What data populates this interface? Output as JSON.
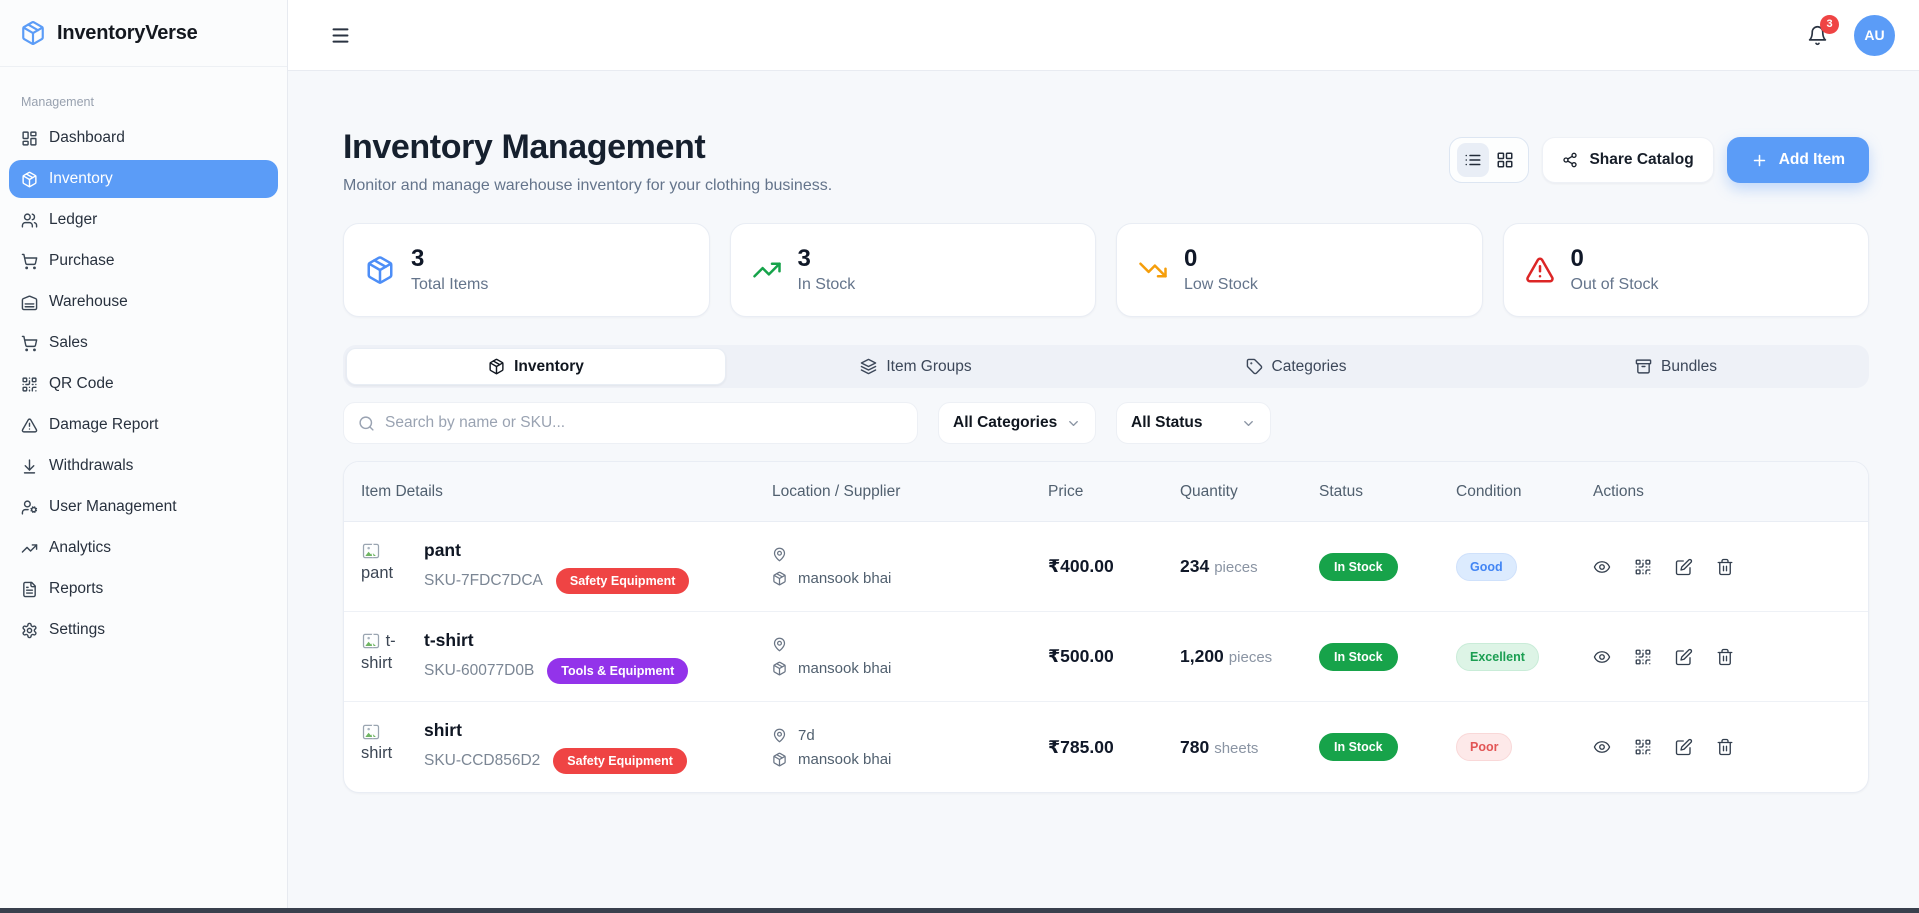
{
  "app": {
    "name": "InventoryVerse"
  },
  "topbar": {
    "notification_count": "3",
    "avatar_initials": "AU"
  },
  "sidebar": {
    "section": "Management",
    "items": [
      {
        "label": "Dashboard",
        "icon": "layout-dashboard",
        "active": false
      },
      {
        "label": "Inventory",
        "icon": "package",
        "active": true
      },
      {
        "label": "Ledger",
        "icon": "users",
        "active": false
      },
      {
        "label": "Purchase",
        "icon": "cart",
        "active": false
      },
      {
        "label": "Warehouse",
        "icon": "warehouse",
        "active": false
      },
      {
        "label": "Sales",
        "icon": "cart",
        "active": false
      },
      {
        "label": "QR Code",
        "icon": "qr",
        "active": false
      },
      {
        "label": "Damage Report",
        "icon": "alert-triangle",
        "active": false
      },
      {
        "label": "Withdrawals",
        "icon": "download",
        "active": false
      },
      {
        "label": "User Management",
        "icon": "user-cog",
        "active": false
      },
      {
        "label": "Analytics",
        "icon": "trending-up",
        "active": false
      },
      {
        "label": "Reports",
        "icon": "file-text",
        "active": false
      },
      {
        "label": "Settings",
        "icon": "settings",
        "active": false
      }
    ]
  },
  "header": {
    "title": "Inventory Management",
    "subtitle": "Monitor and manage warehouse inventory for your clothing business.",
    "share_label": "Share Catalog",
    "add_label": "Add Item"
  },
  "stats": [
    {
      "value": "3",
      "label": "Total Items",
      "icon": "package",
      "color": "#4d8ef7"
    },
    {
      "value": "3",
      "label": "In Stock",
      "icon": "trending-up",
      "color": "#16a34a"
    },
    {
      "value": "0",
      "label": "Low Stock",
      "icon": "trending-down",
      "color": "#f59e0b"
    },
    {
      "value": "0",
      "label": "Out of Stock",
      "icon": "alert-triangle",
      "color": "#dc2626"
    }
  ],
  "tabs": [
    {
      "label": "Inventory",
      "icon": "package",
      "active": true
    },
    {
      "label": "Item Groups",
      "icon": "layers",
      "active": false
    },
    {
      "label": "Categories",
      "icon": "tag",
      "active": false
    },
    {
      "label": "Bundles",
      "icon": "archive",
      "active": false
    }
  ],
  "filters": {
    "search_placeholder": "Search by name or SKU...",
    "category_filter": "All Categories",
    "status_filter": "All Status"
  },
  "table": {
    "columns": [
      "Item Details",
      "Location / Supplier",
      "Price",
      "Quantity",
      "Status",
      "Condition",
      "Actions"
    ],
    "rows": [
      {
        "name": "pant",
        "sku": "SKU-7FDC7DCA",
        "category": "Safety Equipment",
        "category_color": "#ef4444",
        "location": "",
        "supplier": "mansook bhai",
        "price": "₹400.00",
        "quantity": "234",
        "unit": "pieces",
        "status": "In Stock",
        "condition": "Good",
        "condition_style": "blue"
      },
      {
        "name": "t-shirt",
        "sku": "SKU-60077D0B",
        "category": "Tools & Equipment",
        "category_color": "#9333ea",
        "location": "",
        "supplier": "mansook bhai",
        "price": "₹500.00",
        "quantity": "1,200",
        "unit": "pieces",
        "status": "In Stock",
        "condition": "Excellent",
        "condition_style": "green"
      },
      {
        "name": "shirt",
        "sku": "SKU-CCD856D2",
        "category": "Safety Equipment",
        "category_color": "#ef4444",
        "location": "7d",
        "supplier": "mansook bhai",
        "price": "₹785.00",
        "quantity": "780",
        "unit": "sheets",
        "status": "In Stock",
        "condition": "Poor",
        "condition_style": "red"
      }
    ]
  }
}
